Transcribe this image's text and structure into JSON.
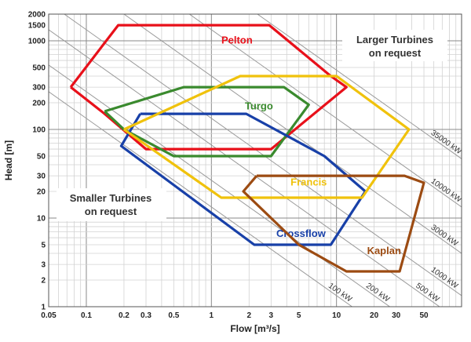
{
  "chart_data": {
    "type": "line",
    "title": "",
    "xlabel": "Flow [m³/s]",
    "ylabel": "Head [m]",
    "x_scale": "log",
    "y_scale": "log",
    "xlim": [
      0.05,
      100
    ],
    "ylim": [
      1,
      2000
    ],
    "grid": true,
    "x_ticks": [
      {
        "value": 0.05,
        "label": "0.05"
      },
      {
        "value": 0.1,
        "label": "0.1"
      },
      {
        "value": 0.2,
        "label": "0.2"
      },
      {
        "value": 0.3,
        "label": "0.3"
      },
      {
        "value": 0.5,
        "label": "0.5"
      },
      {
        "value": 1,
        "label": "1"
      },
      {
        "value": 2,
        "label": "2"
      },
      {
        "value": 3,
        "label": "3"
      },
      {
        "value": 5,
        "label": "5"
      },
      {
        "value": 10,
        "label": "10"
      },
      {
        "value": 20,
        "label": "20"
      },
      {
        "value": 30,
        "label": "30"
      },
      {
        "value": 50,
        "label": "50"
      }
    ],
    "y_ticks": [
      {
        "value": 1,
        "label": "1"
      },
      {
        "value": 2,
        "label": "2"
      },
      {
        "value": 3,
        "label": "3"
      },
      {
        "value": 5,
        "label": "5"
      },
      {
        "value": 10,
        "label": "10"
      },
      {
        "value": 20,
        "label": "20"
      },
      {
        "value": 30,
        "label": "30"
      },
      {
        "value": 50,
        "label": "50"
      },
      {
        "value": 100,
        "label": "100"
      },
      {
        "value": 200,
        "label": "200"
      },
      {
        "value": 300,
        "label": "300"
      },
      {
        "value": 500,
        "label": "500"
      },
      {
        "value": 1000,
        "label": "1000"
      },
      {
        "value": 1500,
        "label": "1500"
      },
      {
        "value": 2000,
        "label": "2000"
      }
    ],
    "power_lines": [
      {
        "kw": 100,
        "label": "100 kW"
      },
      {
        "kw": 200,
        "label": "200 kW"
      },
      {
        "kw": 500,
        "label": "500 kW"
      },
      {
        "kw": 1000,
        "label": "1000 kW"
      },
      {
        "kw": 3000,
        "label": "3000 kW"
      },
      {
        "kw": 10000,
        "label": "10000 kW"
      },
      {
        "kw": 35000,
        "label": "35000 kW"
      }
    ],
    "series": [
      {
        "name": "Pelton",
        "color": "#e8101a",
        "points": [
          [
            0.075,
            300
          ],
          [
            0.18,
            1500
          ],
          [
            2.9,
            1500
          ],
          [
            9,
            400
          ],
          [
            12,
            300
          ],
          [
            3,
            60
          ],
          [
            0.3,
            60
          ],
          [
            0.14,
            150
          ],
          [
            0.075,
            300
          ]
        ],
        "label_at": [
          1.6,
          1000
        ]
      },
      {
        "name": "Turgo",
        "color": "#3a8a2e",
        "points": [
          [
            0.14,
            160
          ],
          [
            0.6,
            300
          ],
          [
            3.8,
            300
          ],
          [
            6,
            190
          ],
          [
            3,
            50
          ],
          [
            0.5,
            50
          ],
          [
            0.2,
            100
          ],
          [
            0.14,
            160
          ]
        ],
        "label_at": [
          2.4,
          180
        ]
      },
      {
        "name": "Crossflow",
        "color": "#1840a8",
        "points": [
          [
            0.27,
            150
          ],
          [
            1.9,
            150
          ],
          [
            8,
            50
          ],
          [
            17,
            20
          ],
          [
            9,
            5
          ],
          [
            2.2,
            5
          ],
          [
            0.19,
            65
          ],
          [
            0.27,
            150
          ]
        ],
        "label_at": [
          5.2,
          6.6
        ]
      },
      {
        "name": "Francis",
        "color": "#f0c20c",
        "points": [
          [
            0.2,
            100
          ],
          [
            1.7,
            400
          ],
          [
            10,
            400
          ],
          [
            38,
            100
          ],
          [
            16,
            17
          ],
          [
            1.2,
            17
          ],
          [
            0.2,
            100
          ]
        ],
        "label_at": [
          6,
          25
        ]
      },
      {
        "name": "Kaplan",
        "color": "#9c4b12",
        "points": [
          [
            2.3,
            30
          ],
          [
            35,
            30
          ],
          [
            50,
            25
          ],
          [
            32,
            2.5
          ],
          [
            12,
            2.5
          ],
          [
            5,
            5
          ],
          [
            1.8,
            20
          ],
          [
            2.3,
            30
          ]
        ],
        "label_at": [
          24,
          4.2
        ]
      }
    ],
    "annotations": [
      {
        "lines": [
          "Larger Turbines",
          "on request"
        ]
      },
      {
        "lines": [
          "Smaller Turbines",
          "on request"
        ]
      }
    ]
  }
}
